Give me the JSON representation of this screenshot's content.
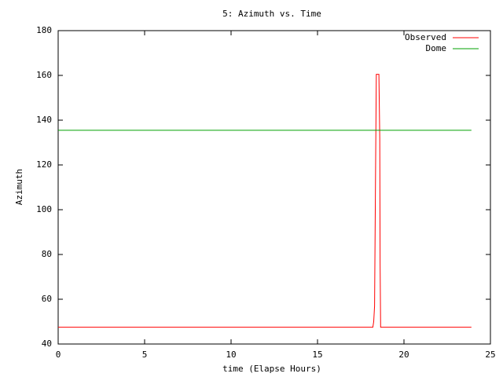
{
  "chart_data": {
    "type": "line",
    "title": "5: Azimuth vs. Time",
    "x_label": "time (Elapse Hours)",
    "y_label": "Azimuth",
    "xlim": [
      0,
      25
    ],
    "xticks": [
      0,
      5,
      10,
      15,
      20,
      25
    ],
    "ylim": [
      40,
      180
    ],
    "yticks": [
      40,
      60,
      80,
      100,
      120,
      140,
      160,
      180
    ],
    "legend": "top-right",
    "series": [
      {
        "name": "Observed",
        "color": "#ff0000",
        "x": [
          0,
          18.2,
          18.25,
          18.3,
          18.35,
          18.4,
          18.55,
          18.6,
          18.62,
          18.65,
          23.9
        ],
        "values": [
          47.5,
          47.5,
          50,
          57,
          110,
          160.5,
          160.5,
          132,
          76,
          47.5,
          47.5
        ]
      },
      {
        "name": "Dome",
        "color": "#00a000",
        "x": [
          0,
          23.9
        ],
        "values": [
          135.5,
          135.5
        ]
      }
    ]
  }
}
